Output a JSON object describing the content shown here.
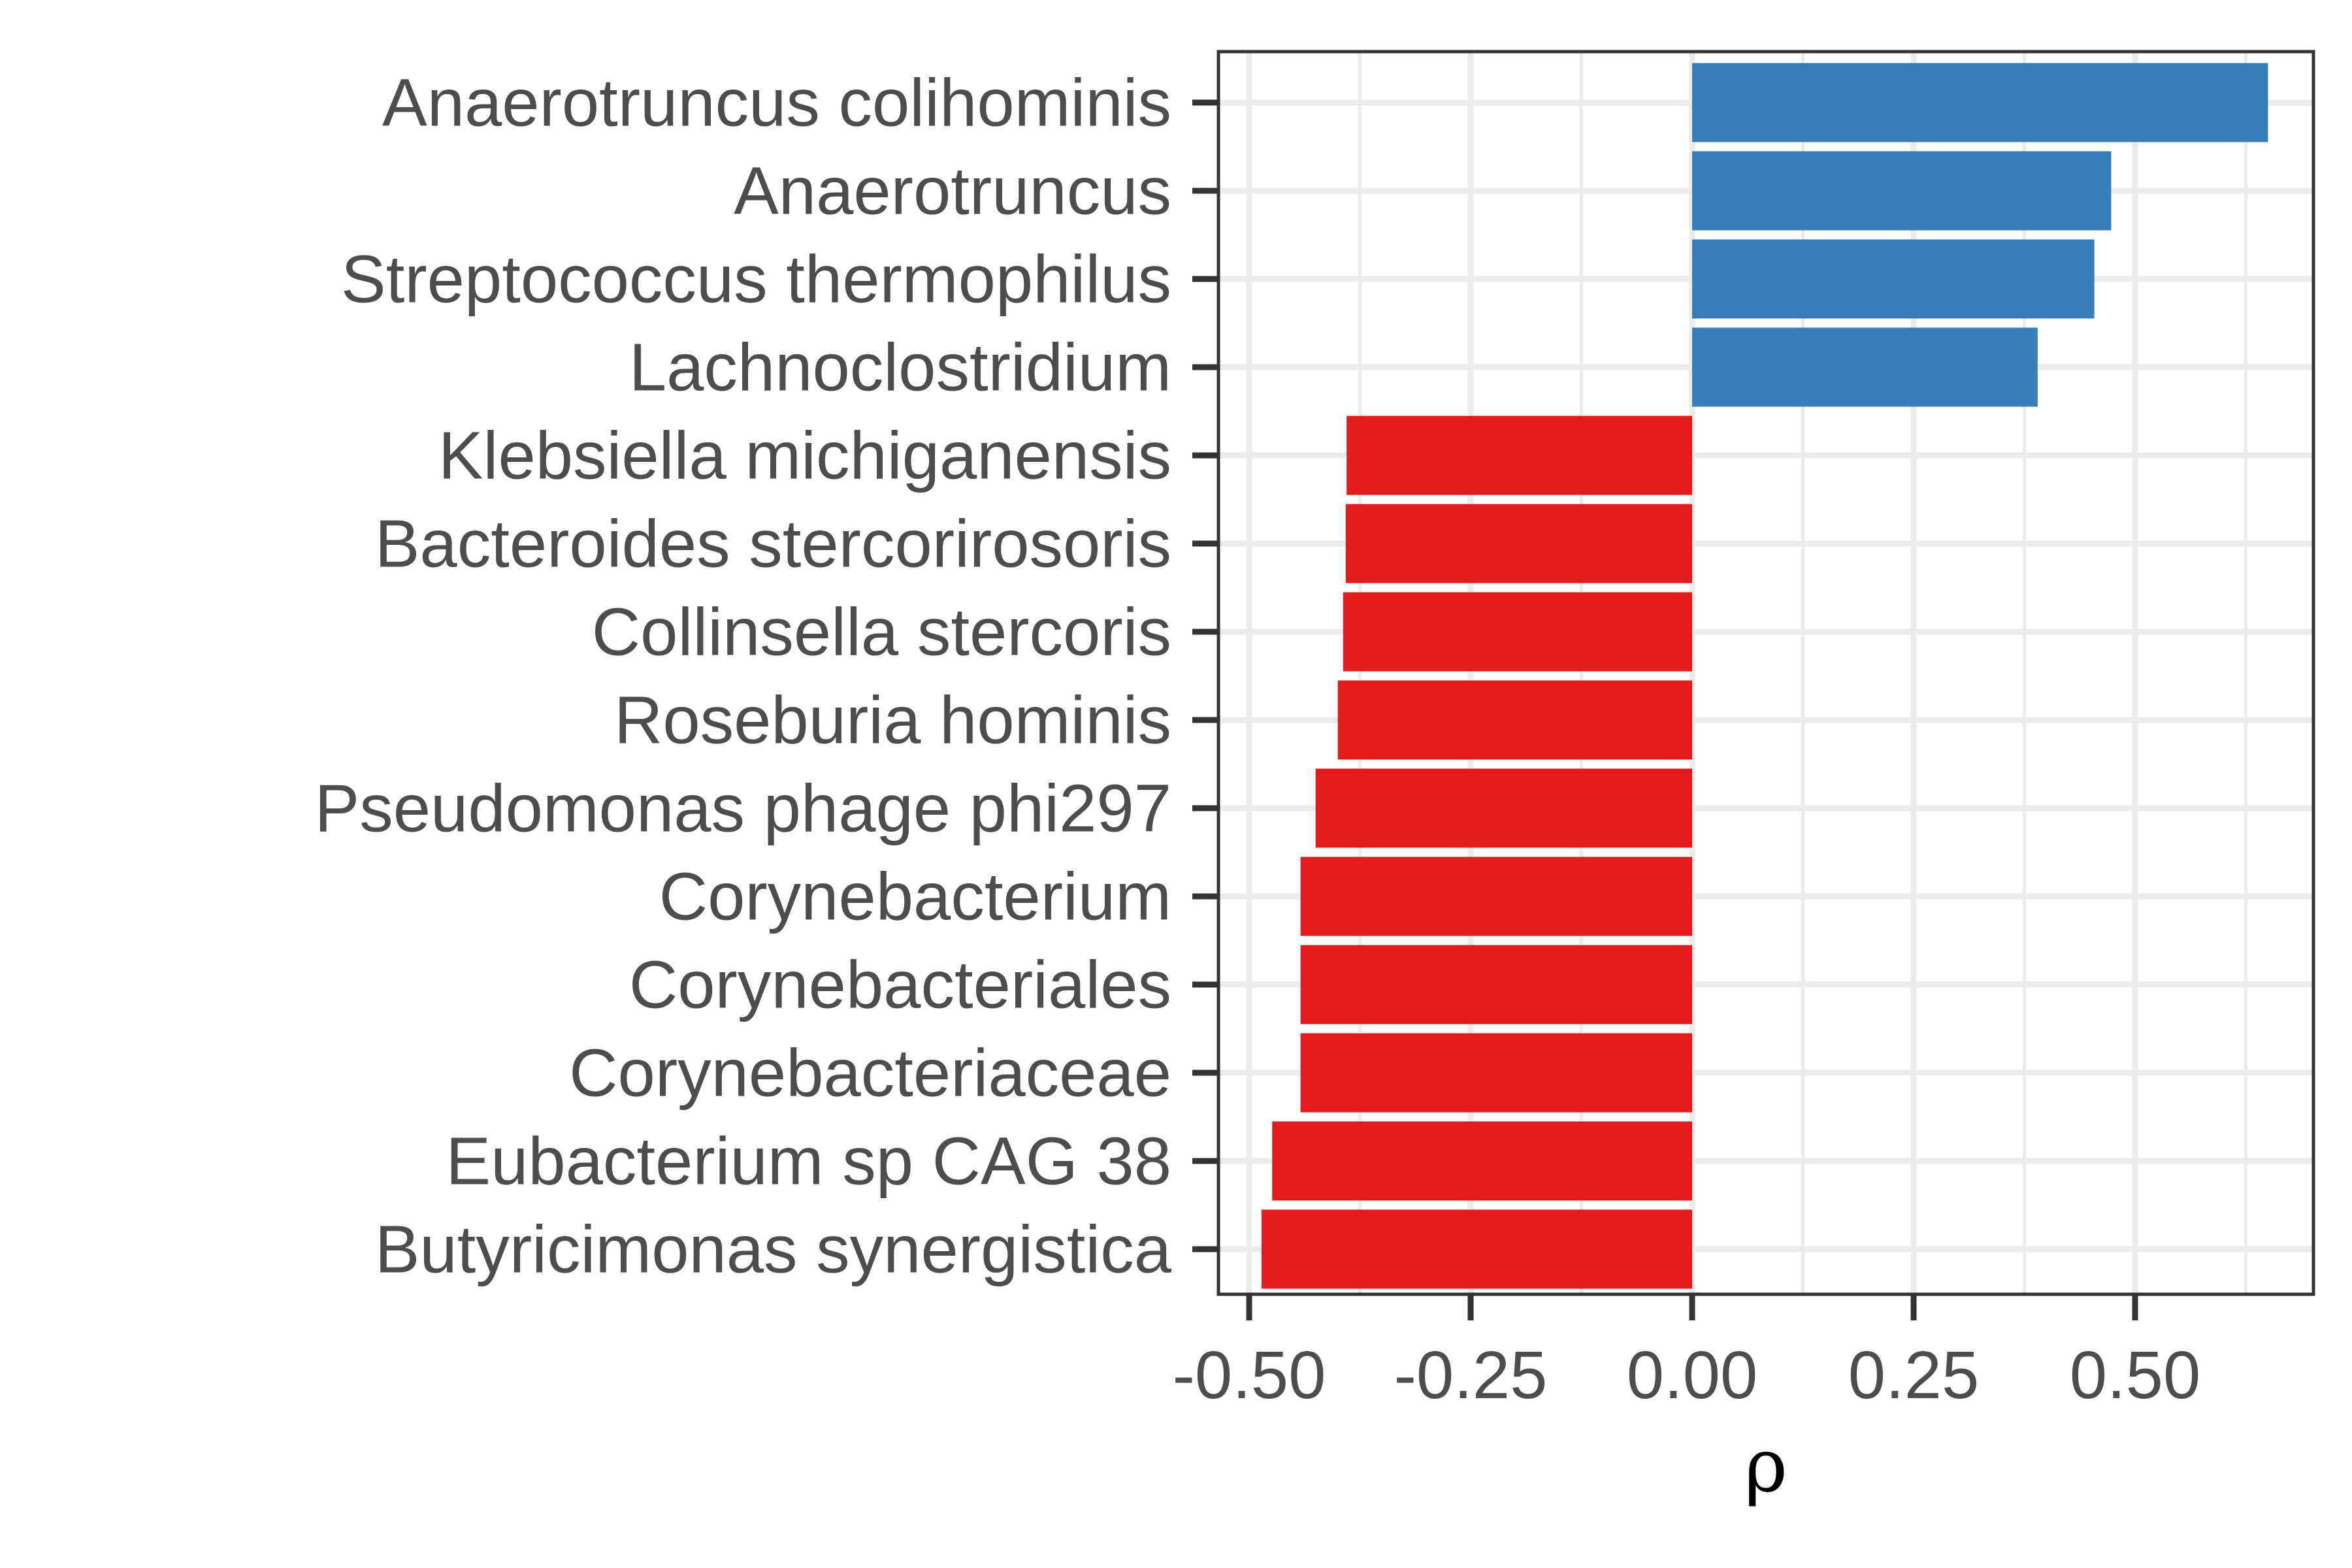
{
  "chart_data": {
    "type": "bar",
    "orientation": "horizontal",
    "title": "",
    "xlabel": "ρ",
    "ylabel": "",
    "xlim": [
      -0.507,
      0.7
    ],
    "xticks": [
      -0.5,
      -0.25,
      0.0,
      0.25,
      0.5
    ],
    "xtick_labels": [
      "-0.50",
      "-0.25",
      "0.00",
      "0.25",
      "0.50"
    ],
    "grid": true,
    "legend": "none",
    "colors": {
      "positive": "#377EB8",
      "negative": "#E41A1C"
    },
    "categories": [
      "Anaerotruncus colihominis",
      "Anaerotruncus",
      "Streptococcus thermophilus",
      "Lachnoclostridium",
      "Klebsiella michiganensis",
      "Bacteroides stercorirosoris",
      "Collinsella stercoris",
      "Roseburia hominis",
      "Pseudomonas phage phi297",
      "Corynebacterium",
      "Corynebacteriales",
      "Corynebacteriaceae",
      "Eubacterium sp CAG 38",
      "Butyricimonas synergistica"
    ],
    "values": [
      0.65,
      0.473,
      0.454,
      0.39,
      -0.39,
      -0.391,
      -0.394,
      -0.4,
      -0.425,
      -0.442,
      -0.442,
      -0.442,
      -0.474,
      -0.486
    ]
  }
}
